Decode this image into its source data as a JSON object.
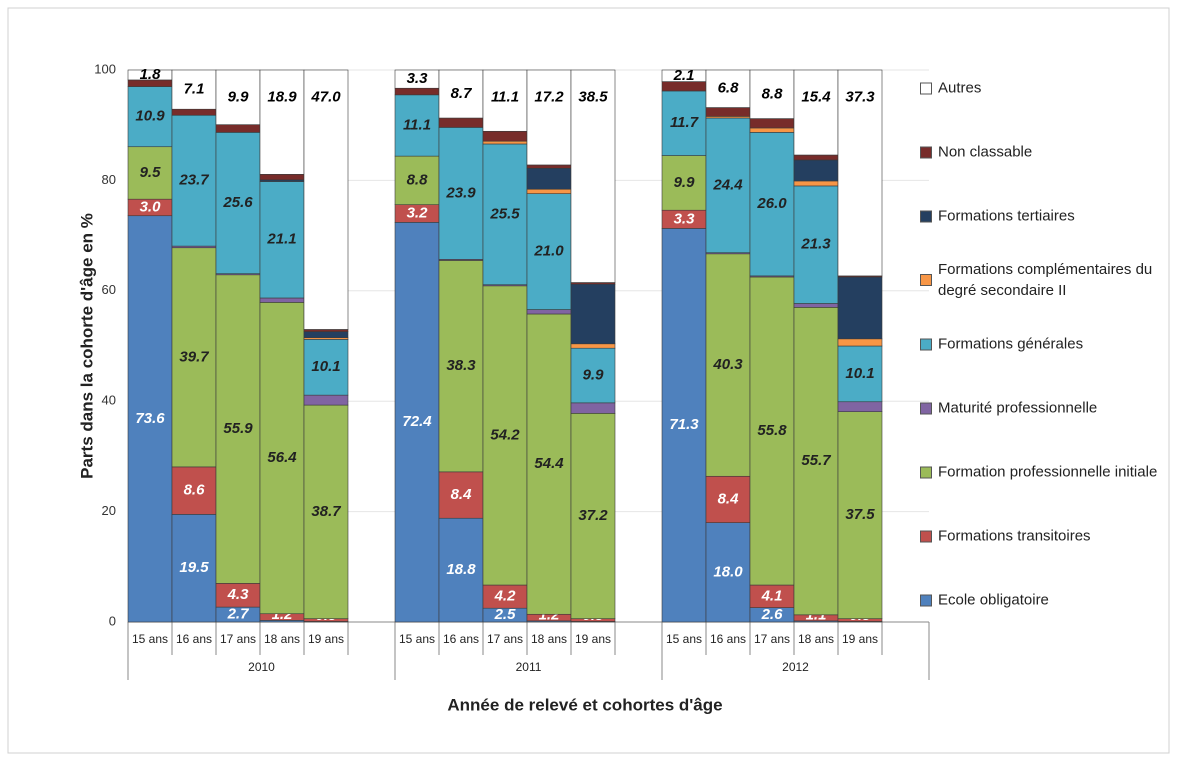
{
  "chart_data": {
    "type": "stacked_bar",
    "xlabel": "Année de relevé et cohortes d'âge",
    "ylabel": "Parts dans la cohorte d'âge en %",
    "categories": [
      "15 ans",
      "16 ans",
      "17 ans",
      "18 ans",
      "19 ans",
      "15 ans",
      "16 ans",
      "17 ans",
      "18 ans",
      "19 ans",
      "15 ans",
      "16 ans",
      "17 ans",
      "18 ans",
      "19 ans"
    ],
    "groups": [
      "2010",
      "2011",
      "2012"
    ],
    "ylim": [
      0,
      100
    ],
    "yticks": [
      0,
      20,
      40,
      60,
      80,
      100
    ],
    "grid": true,
    "legend": "right",
    "series": [
      {
        "name": "Ecole obligatoire",
        "color": "#4f81bd",
        "values": [
          73.6,
          19.5,
          2.7,
          0.3,
          0.1,
          72.4,
          18.8,
          2.5,
          0.2,
          0.1,
          71.3,
          18.0,
          2.6,
          0.2,
          0.1
        ],
        "value_labels": [
          "73.6",
          "19.5",
          "2.7",
          null,
          null,
          "72.4",
          "18.8",
          "2.5",
          null,
          null,
          "71.3",
          "18.0",
          "2.6",
          null,
          null
        ]
      },
      {
        "name": "Formations transitoires",
        "color": "#c0504d",
        "values": [
          3.0,
          8.6,
          4.3,
          1.2,
          0.5,
          3.2,
          8.4,
          4.2,
          1.2,
          0.5,
          3.3,
          8.4,
          4.1,
          1.1,
          0.5
        ],
        "value_labels": [
          "3.0",
          "8.6",
          "4.3",
          "1.2",
          "0.5",
          "3.2",
          "8.4",
          "4.2",
          "1.2",
          "0.5",
          "3.3",
          "8.4",
          "4.1",
          "1.1",
          "0.5"
        ]
      },
      {
        "name": "Formation professionnelle initiale",
        "color": "#9bbb59",
        "values": [
          9.5,
          39.7,
          55.9,
          56.4,
          38.7,
          8.8,
          38.3,
          54.2,
          54.4,
          37.2,
          9.9,
          40.3,
          55.8,
          55.7,
          37.5
        ],
        "value_labels": [
          "9.5",
          "39.7",
          "55.9",
          "56.4",
          "38.7",
          "8.8",
          "38.3",
          "54.2",
          "54.4",
          "37.2",
          "9.9",
          "40.3",
          "55.8",
          "55.7",
          "37.5"
        ]
      },
      {
        "name": "Maturité professionnelle",
        "color": "#8064a2",
        "values": [
          0,
          0.3,
          0.2,
          0.8,
          1.8,
          0,
          0.2,
          0.2,
          0.8,
          1.9,
          0,
          0.2,
          0.2,
          0.7,
          1.8
        ]
      },
      {
        "name": "Formations générales",
        "color": "#4bacc6",
        "values": [
          10.9,
          23.7,
          25.6,
          21.1,
          10.1,
          11.1,
          23.9,
          25.5,
          21.0,
          9.9,
          11.7,
          24.4,
          26.0,
          21.3,
          10.1
        ],
        "value_labels": [
          "10.9",
          "23.7",
          "25.6",
          "21.1",
          "10.1",
          "11.1",
          "23.9",
          "25.5",
          "21.0",
          "9.9",
          "11.7",
          "24.4",
          "26.0",
          "21.3",
          "10.1"
        ]
      },
      {
        "name": "Formations complémentaires du degré secondaire II",
        "color": "#f79646",
        "values": [
          0,
          0,
          0,
          0,
          0.3,
          0,
          0,
          0.5,
          0.8,
          0.8,
          0,
          0.3,
          0.8,
          0.9,
          1.3
        ]
      },
      {
        "name": "Formations tertiaires",
        "color": "#243f60",
        "values": [
          0,
          0,
          0,
          0.3,
          1.1,
          0,
          0,
          0,
          3.8,
          10.8,
          0,
          0,
          0,
          3.8,
          11.2
        ]
      },
      {
        "name": "Non classable",
        "color": "#772c2a",
        "values": [
          1.2,
          1.1,
          1.4,
          1.0,
          0.4,
          1.2,
          1.7,
          1.8,
          0.6,
          0.3,
          1.7,
          1.6,
          1.7,
          0.9,
          0.2
        ]
      },
      {
        "name": "Autres",
        "color": "#ffffff",
        "values": [
          1.8,
          7.1,
          9.9,
          18.9,
          47.0,
          3.3,
          8.7,
          11.1,
          17.2,
          38.5,
          2.1,
          6.8,
          8.8,
          15.4,
          37.3
        ],
        "value_labels": [
          "1.8",
          "7.1",
          "9.9",
          "18.9",
          "47.0",
          "3.3",
          "8.7",
          "11.1",
          "17.2",
          "38.5",
          "2.1",
          "6.8",
          "8.8",
          "15.4",
          "37.3"
        ]
      }
    ]
  }
}
